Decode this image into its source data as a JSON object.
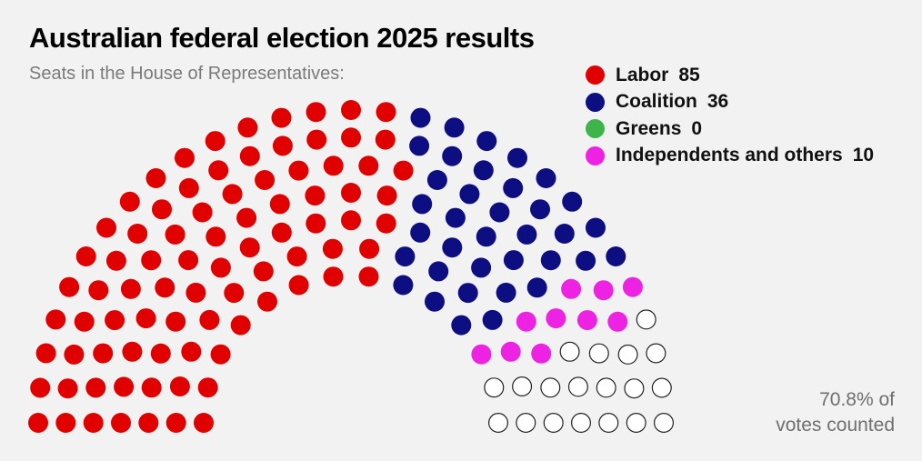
{
  "chart_data": {
    "type": "parliament",
    "title": "Australian federal election 2025 results",
    "subtitle": "Seats in the House of Representatives:",
    "total_seats": 150,
    "series": [
      {
        "name": "Labor",
        "value": 85,
        "color": "#e00000"
      },
      {
        "name": "Coalition",
        "value": 36,
        "color": "#0c0e82"
      },
      {
        "name": "Greens",
        "value": 0,
        "color": "#3db54a"
      },
      {
        "name": "Independents and others",
        "value": 10,
        "color": "#ee22e3"
      }
    ],
    "undecided": {
      "value": 19,
      "color": "#ffffff",
      "stroke": "#222222"
    },
    "votes_counted": {
      "line1": "70.8% of",
      "line2": "votes counted"
    }
  }
}
